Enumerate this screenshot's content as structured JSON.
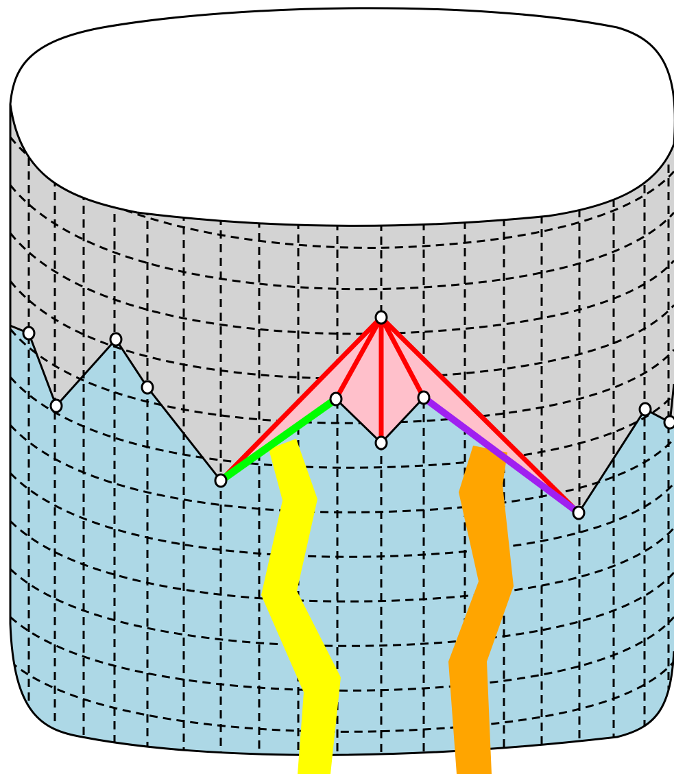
{
  "figure": {
    "description_text": "",
    "colors": {
      "background": "#ffffff",
      "cylinder_top": "#ffffff",
      "upper_side": "#d3d3d3",
      "lower_side": "#add8e6",
      "triangulated_patch": "#ffc0cb",
      "patch_edges": "#ff0000",
      "left_highlight_edge": "#00ff00",
      "right_highlight_edge": "#a020f0",
      "left_path": "#ffff00",
      "right_path": "#ffa500",
      "outline": "#000000",
      "vertex_fill": "#ffffff"
    },
    "elements": [
      "cylinder-top-ellipse",
      "dashed-grid",
      "boundary-polyline",
      "red-fan-edges",
      "green-edge",
      "purple-edge",
      "yellow-path",
      "orange-path",
      "vertex-markers"
    ]
  }
}
